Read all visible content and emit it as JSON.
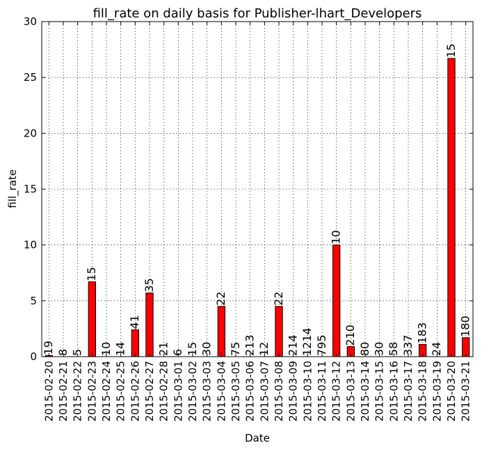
{
  "chart_data": {
    "type": "bar",
    "title": "fill_rate on daily basis for Publisher-lhart_Developers",
    "xlabel": "Date",
    "ylabel": "fill_rate",
    "ylim": [
      0,
      30
    ],
    "yticks": [
      0,
      5,
      10,
      15,
      20,
      25,
      30
    ],
    "grid": true,
    "bar_color": "#ff0000",
    "categories": [
      "2015-02-20",
      "2015-02-21",
      "2015-02-22",
      "2015-02-23",
      "2015-02-24",
      "2015-02-25",
      "2015-02-26",
      "2015-02-27",
      "2015-02-28",
      "2015-03-01",
      "2015-03-02",
      "2015-03-03",
      "2015-03-04",
      "2015-03-05",
      "2015-03-06",
      "2015-03-07",
      "2015-03-08",
      "2015-03-09",
      "2015-03-10",
      "2015-03-11",
      "2015-03-12",
      "2015-03-13",
      "2015-03-14",
      "2015-03-15",
      "2015-03-16",
      "2015-03-17",
      "2015-03-18",
      "2015-03-19",
      "2015-03-20",
      "2015-03-21"
    ],
    "values": [
      0.1,
      0,
      0,
      6.7,
      0,
      0,
      2.4,
      5.7,
      0,
      0,
      0,
      0,
      4.5,
      0,
      0,
      0,
      4.5,
      0,
      0,
      0,
      10.0,
      0.9,
      0,
      0,
      0,
      0,
      1.1,
      0,
      26.7,
      1.7
    ],
    "bar_labels": [
      "19",
      "8",
      "5",
      "15",
      "10",
      "14",
      "41",
      "35",
      "21",
      "6",
      "15",
      "30",
      "22",
      "75",
      "213",
      "12",
      "22",
      "214",
      "1214",
      "795",
      "10",
      "210",
      "80",
      "30",
      "58",
      "337",
      "183",
      "24",
      "15",
      "180"
    ]
  }
}
